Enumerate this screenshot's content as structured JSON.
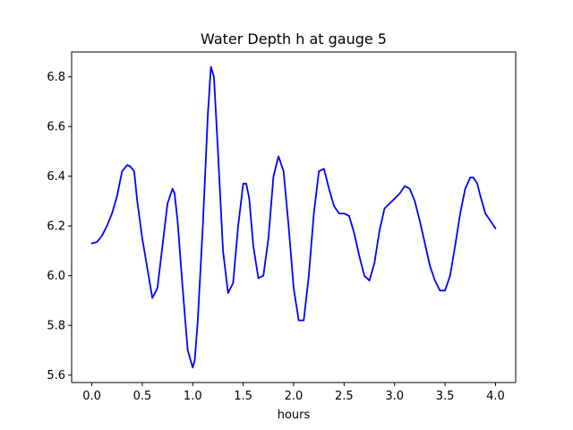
{
  "chart_data": {
    "type": "line",
    "title": "Water Depth h at gauge 5",
    "xlabel": "hours",
    "ylabel": "",
    "xlim": [
      -0.2,
      4.2
    ],
    "ylim": [
      5.57,
      6.9
    ],
    "xticks": [
      0.0,
      0.5,
      1.0,
      1.5,
      2.0,
      2.5,
      3.0,
      3.5,
      4.0
    ],
    "xtick_labels": [
      "0.0",
      "0.5",
      "1.0",
      "1.5",
      "2.0",
      "2.5",
      "3.0",
      "3.5",
      "4.0"
    ],
    "yticks": [
      5.6,
      5.8,
      6.0,
      6.2,
      6.4,
      6.6,
      6.8
    ],
    "ytick_labels": [
      "5.6",
      "5.8",
      "6.0",
      "6.2",
      "6.4",
      "6.6",
      "6.8"
    ],
    "grid": false,
    "series": [
      {
        "color": "#0000ff",
        "x": [
          0.0,
          0.05,
          0.1,
          0.15,
          0.2,
          0.25,
          0.3,
          0.35,
          0.38,
          0.42,
          0.45,
          0.5,
          0.55,
          0.6,
          0.65,
          0.7,
          0.75,
          0.8,
          0.82,
          0.85,
          0.9,
          0.95,
          1.0,
          1.02,
          1.05,
          1.1,
          1.15,
          1.18,
          1.21,
          1.25,
          1.3,
          1.35,
          1.4,
          1.45,
          1.5,
          1.53,
          1.56,
          1.6,
          1.65,
          1.7,
          1.75,
          1.8,
          1.85,
          1.9,
          1.95,
          2.0,
          2.05,
          2.1,
          2.15,
          2.2,
          2.25,
          2.3,
          2.35,
          2.4,
          2.45,
          2.5,
          2.55,
          2.6,
          2.65,
          2.7,
          2.75,
          2.8,
          2.85,
          2.9,
          2.95,
          3.0,
          3.05,
          3.1,
          3.15,
          3.2,
          3.25,
          3.3,
          3.35,
          3.4,
          3.45,
          3.5,
          3.55,
          3.6,
          3.65,
          3.7,
          3.75,
          3.78,
          3.82,
          3.85,
          3.9,
          3.95,
          4.0
        ],
        "y": [
          6.13,
          6.135,
          6.16,
          6.2,
          6.25,
          6.32,
          6.42,
          6.445,
          6.44,
          6.42,
          6.3,
          6.15,
          6.03,
          5.91,
          5.95,
          6.12,
          6.29,
          6.35,
          6.33,
          6.22,
          5.95,
          5.7,
          5.63,
          5.66,
          5.82,
          6.2,
          6.65,
          6.84,
          6.8,
          6.5,
          6.1,
          5.93,
          5.97,
          6.2,
          6.37,
          6.37,
          6.31,
          6.12,
          5.99,
          6.0,
          6.15,
          6.4,
          6.48,
          6.42,
          6.2,
          5.95,
          5.82,
          5.82,
          6.0,
          6.25,
          6.42,
          6.43,
          6.35,
          6.28,
          6.25,
          6.25,
          6.24,
          6.17,
          6.08,
          6.0,
          5.98,
          6.05,
          6.18,
          6.27,
          6.29,
          6.31,
          6.33,
          6.36,
          6.35,
          6.3,
          6.22,
          6.13,
          6.04,
          5.98,
          5.94,
          5.94,
          6.0,
          6.12,
          6.25,
          6.35,
          6.395,
          6.395,
          6.37,
          6.32,
          6.25,
          6.22,
          6.19
        ]
      }
    ]
  }
}
